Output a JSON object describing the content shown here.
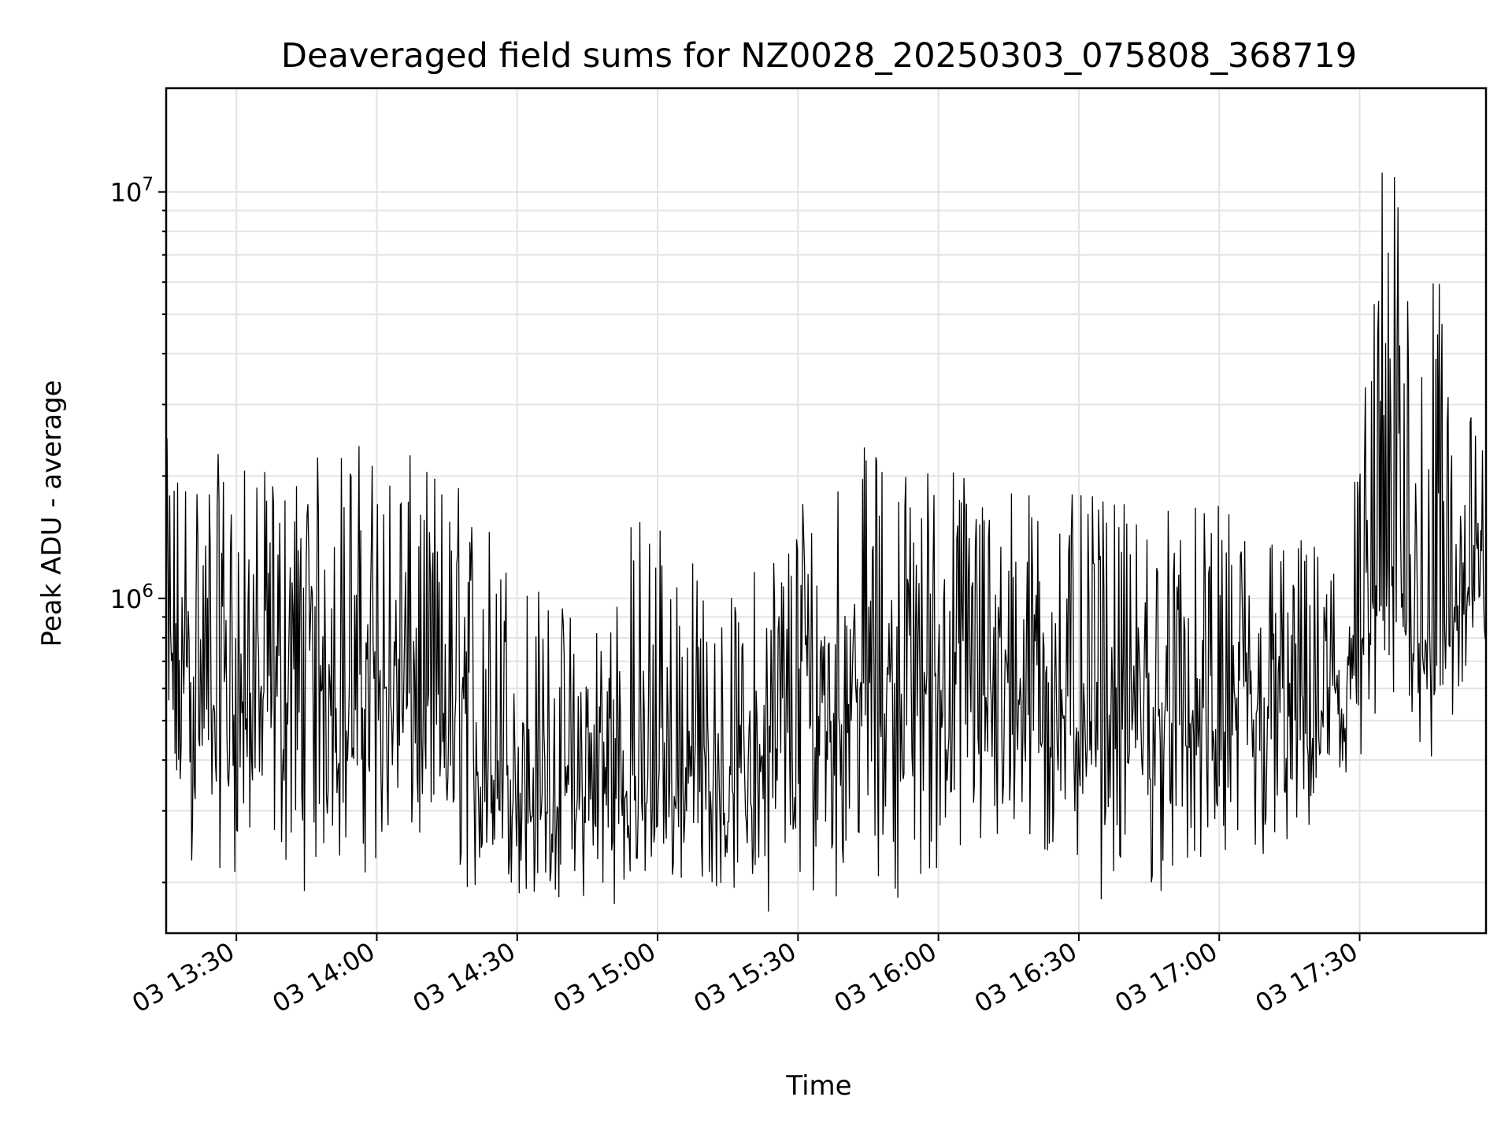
{
  "chart_data": {
    "type": "line",
    "title": "Deaveraged field sums for NZ0028_20250303_075808_368719",
    "xlabel": "Time",
    "ylabel": "Peak ADU - average",
    "yscale": "log",
    "ylim": [
      150000,
      18000000
    ],
    "xlim": [
      "2025-03-03 13:15",
      "2025-03-03 17:57"
    ],
    "grid": "both (major and minor)",
    "line_color": "#000000",
    "x_tick_labels": [
      "03 13:30",
      "03 14:00",
      "03 14:30",
      "03 15:00",
      "03 15:30",
      "03 16:00",
      "03 16:30",
      "03 17:00",
      "03 17:30"
    ],
    "x_ticks": [
      "2025-03-03 13:30",
      "2025-03-03 14:00",
      "2025-03-03 14:30",
      "2025-03-03 15:00",
      "2025-03-03 15:30",
      "2025-03-03 16:00",
      "2025-03-03 16:30",
      "2025-03-03 17:00",
      "2025-03-03 17:30"
    ],
    "y_ticks": [
      {
        "base": "10",
        "exp": "6",
        "value": 1000000
      },
      {
        "base": "10",
        "exp": "7",
        "value": 10000000
      }
    ],
    "series": [
      {
        "x": [
          "2025-03-03 13:15",
          "2025-03-03 13:20",
          "2025-03-03 13:25",
          "2025-03-03 13:30",
          "2025-03-03 13:35",
          "2025-03-03 13:40",
          "2025-03-03 13:45",
          "2025-03-03 13:50",
          "2025-03-03 13:55",
          "2025-03-03 14:00",
          "2025-03-03 14:05",
          "2025-03-03 14:10",
          "2025-03-03 14:15",
          "2025-03-03 14:20",
          "2025-03-03 14:25",
          "2025-03-03 14:30",
          "2025-03-03 14:35",
          "2025-03-03 14:40",
          "2025-03-03 14:45",
          "2025-03-03 14:50",
          "2025-03-03 14:55",
          "2025-03-03 15:00",
          "2025-03-03 15:05",
          "2025-03-03 15:10",
          "2025-03-03 15:15",
          "2025-03-03 15:20",
          "2025-03-03 15:25",
          "2025-03-03 15:30",
          "2025-03-03 15:35",
          "2025-03-03 15:40",
          "2025-03-03 15:45",
          "2025-03-03 15:50",
          "2025-03-03 15:55",
          "2025-03-03 16:00",
          "2025-03-03 16:05",
          "2025-03-03 16:10",
          "2025-03-03 16:15",
          "2025-03-03 16:20",
          "2025-03-03 16:25",
          "2025-03-03 16:30",
          "2025-03-03 16:35",
          "2025-03-03 16:40",
          "2025-03-03 16:45",
          "2025-03-03 16:50",
          "2025-03-03 16:55",
          "2025-03-03 17:00",
          "2025-03-03 17:05",
          "2025-03-03 17:10",
          "2025-03-03 17:15",
          "2025-03-03 17:20",
          "2025-03-03 17:25",
          "2025-03-03 17:30",
          "2025-03-03 17:35",
          "2025-03-03 17:40",
          "2025-03-03 17:45",
          "2025-03-03 17:50",
          "2025-03-03 17:55"
        ],
        "min": [
          210000,
          200000,
          210000,
          200000,
          195000,
          190000,
          180000,
          190000,
          200000,
          200000,
          195000,
          200000,
          185000,
          175000,
          170000,
          175000,
          170000,
          165000,
          170000,
          175000,
          170000,
          180000,
          185000,
          190000,
          180000,
          170000,
          165000,
          170000,
          175000,
          180000,
          185000,
          180000,
          175000,
          180000,
          185000,
          190000,
          185000,
          185000,
          180000,
          180000,
          175000,
          170000,
          175000,
          180000,
          175000,
          180000,
          185000,
          190000,
          200000,
          210000,
          220000,
          260000,
          450000,
          500000,
          300000,
          450000,
          650000
        ],
        "max": [
          2500000,
          2400000,
          2300000,
          2200000,
          2100000,
          2000000,
          2200000,
          2400000,
          2600000,
          2400000,
          2300000,
          2200000,
          2100000,
          1900000,
          1600000,
          1300000,
          1100000,
          1000000,
          950000,
          1200000,
          1700000,
          1900000,
          1500000,
          1100000,
          1000000,
          1200000,
          1500000,
          2000000,
          2200000,
          2400000,
          2400000,
          2300000,
          2200000,
          2300000,
          2200000,
          2100000,
          2000000,
          1900000,
          1900000,
          1800000,
          1800000,
          1700000,
          1700000,
          1800000,
          1700000,
          1700000,
          1700000,
          1600000,
          1500000,
          1400000,
          1500000,
          2500000,
          13500000,
          10500000,
          6500000,
          5500000,
          2500000
        ],
        "typical": [
          600000,
          650000,
          600000,
          550000,
          600000,
          650000,
          700000,
          650000,
          600000,
          600000,
          600000,
          550000,
          500000,
          420000,
          380000,
          350000,
          330000,
          320000,
          330000,
          340000,
          350000,
          360000,
          360000,
          370000,
          360000,
          380000,
          420000,
          500000,
          550000,
          600000,
          620000,
          640000,
          650000,
          650000,
          640000,
          630000,
          620000,
          600000,
          580000,
          560000,
          540000,
          520000,
          510000,
          500000,
          490000,
          480000,
          470000,
          480000,
          520000,
          560000,
          600000,
          700000,
          1000000,
          1100000,
          900000,
          900000,
          1100000
        ]
      }
    ]
  }
}
